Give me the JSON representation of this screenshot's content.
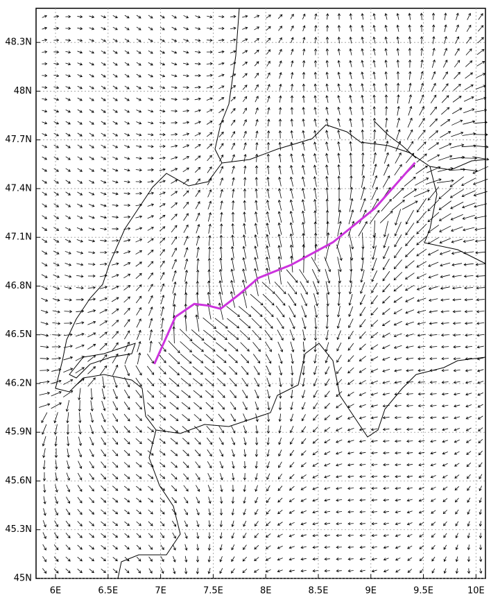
{
  "map": {
    "xlim": [
      5.815,
      10.09
    ],
    "ylim": [
      45,
      48.51
    ],
    "xticks": [
      {
        "value": 6,
        "label": "6E"
      },
      {
        "value": 6.5,
        "label": "6.5E"
      },
      {
        "value": 7,
        "label": "7E"
      },
      {
        "value": 7.5,
        "label": "7.5E"
      },
      {
        "value": 8,
        "label": "8E"
      },
      {
        "value": 8.5,
        "label": "8.5E"
      },
      {
        "value": 9,
        "label": "9E"
      },
      {
        "value": 9.5,
        "label": "9.5E"
      },
      {
        "value": 10,
        "label": "10E"
      }
    ],
    "yticks": [
      {
        "value": 45,
        "label": "45N"
      },
      {
        "value": 45.3,
        "label": "45.3N"
      },
      {
        "value": 45.6,
        "label": "45.6N"
      },
      {
        "value": 45.9,
        "label": "45.9N"
      },
      {
        "value": 46.2,
        "label": "46.2N"
      },
      {
        "value": 46.5,
        "label": "46.5N"
      },
      {
        "value": 46.8,
        "label": "46.8N"
      },
      {
        "value": 47.1,
        "label": "47.1N"
      },
      {
        "value": 47.4,
        "label": "47.4N"
      },
      {
        "value": 47.7,
        "label": "47.7N"
      },
      {
        "value": 48,
        "label": "48N"
      },
      {
        "value": 48.3,
        "label": "48.3N"
      }
    ],
    "track": {
      "color": "#cc33dd",
      "lon": [
        6.94,
        7.14,
        7.32,
        7.45,
        7.57,
        7.75,
        7.93,
        8.24,
        8.64,
        9.04,
        9.42
      ],
      "lat": [
        46.32,
        46.61,
        46.69,
        46.68,
        46.66,
        46.75,
        46.85,
        46.93,
        47.07,
        47.28,
        47.56
      ]
    }
  }
}
